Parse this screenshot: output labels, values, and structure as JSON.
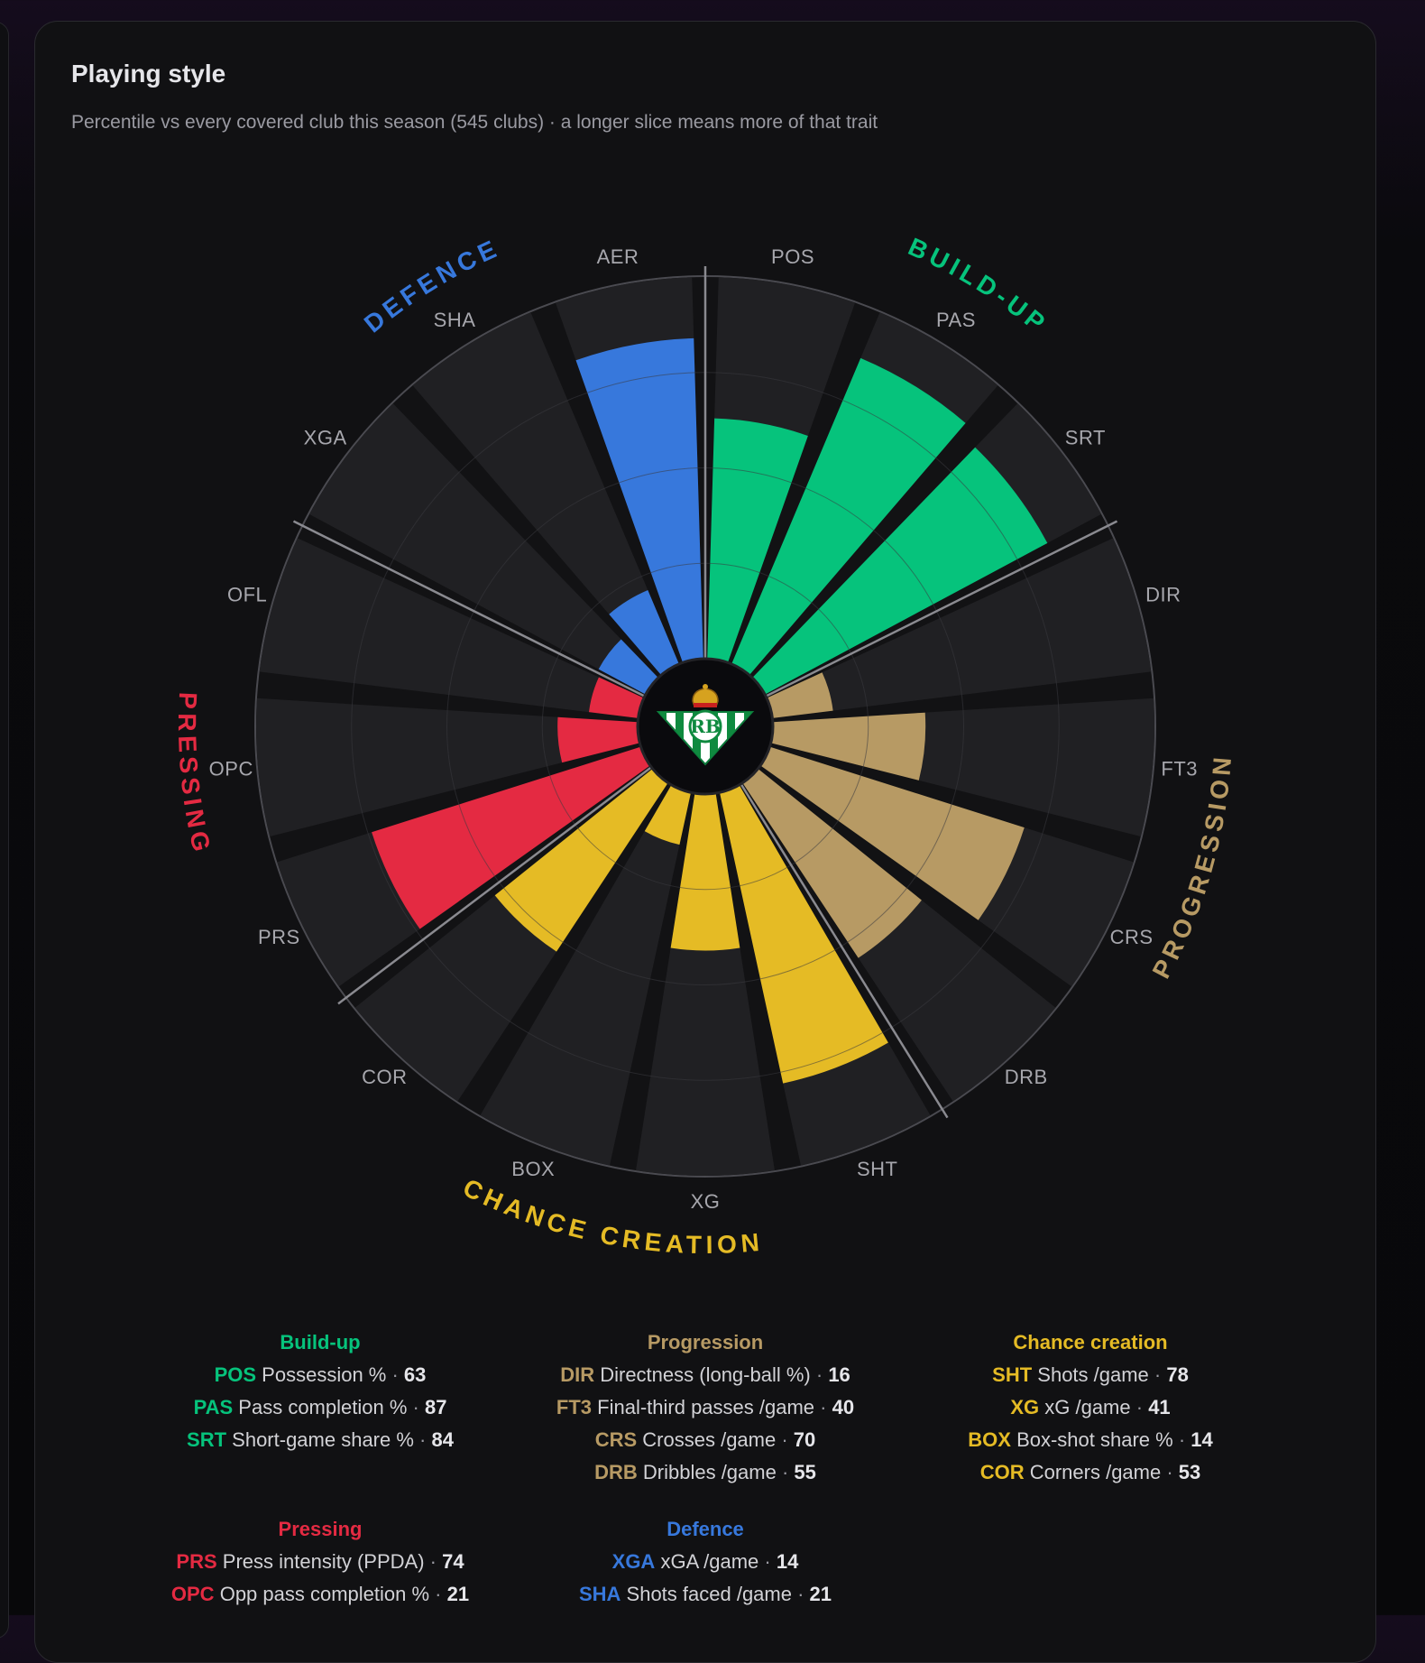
{
  "card": {
    "title": "Playing style",
    "subtitle": "Percentile vs every covered club this season (545 clubs) · a longer slice means more of that trait"
  },
  "chart_data": {
    "type": "polar-bar",
    "scale_max": 100,
    "groups": [
      {
        "key": "build",
        "name": "BUILD-UP",
        "legend_title": "Build-up",
        "color": "#06c37c",
        "metrics": [
          {
            "code": "POS",
            "label": "Possession %",
            "value": 63
          },
          {
            "code": "PAS",
            "label": "Pass completion %",
            "value": 87
          },
          {
            "code": "SRT",
            "label": "Short-game share %",
            "value": 84
          }
        ]
      },
      {
        "key": "prog",
        "name": "PROGRESSION",
        "legend_title": "Progression",
        "color": "#b79a64",
        "metrics": [
          {
            "code": "DIR",
            "label": "Directness (long-ball %)",
            "value": 16
          },
          {
            "code": "FT3",
            "label": "Final-third passes /game",
            "value": 40
          },
          {
            "code": "CRS",
            "label": "Crosses /game",
            "value": 70
          },
          {
            "code": "DRB",
            "label": "Dribbles /game",
            "value": 55
          }
        ]
      },
      {
        "key": "chance",
        "name": "CHANCE CREATION",
        "legend_title": "Chance creation",
        "color": "#e5bb25",
        "metrics": [
          {
            "code": "SHT",
            "label": "Shots /game",
            "value": 78
          },
          {
            "code": "XG",
            "label": "xG /game",
            "value": 41
          },
          {
            "code": "BOX",
            "label": "Box-shot share %",
            "value": 14
          },
          {
            "code": "COR",
            "label": "Corners /game",
            "value": 53
          }
        ]
      },
      {
        "key": "press",
        "name": "PRESSING",
        "legend_title": "Pressing",
        "color": "#e42a42",
        "metrics": [
          {
            "code": "PRS",
            "label": "Press intensity (PPDA)",
            "value": 74
          },
          {
            "code": "OPC",
            "label": "Opp pass completion %",
            "value": 21
          },
          {
            "code": "OFL",
            "label": "",
            "value": 13
          }
        ]
      },
      {
        "key": "def",
        "name": "DEFENCE",
        "legend_title": "Defence",
        "color": "#3778dc",
        "metrics": [
          {
            "code": "XGA",
            "label": "xGA /game",
            "value": 14
          },
          {
            "code": "SHA",
            "label": "Shots faced /game",
            "value": 21
          },
          {
            "code": "AER",
            "label": "",
            "value": 84
          }
        ]
      }
    ]
  }
}
